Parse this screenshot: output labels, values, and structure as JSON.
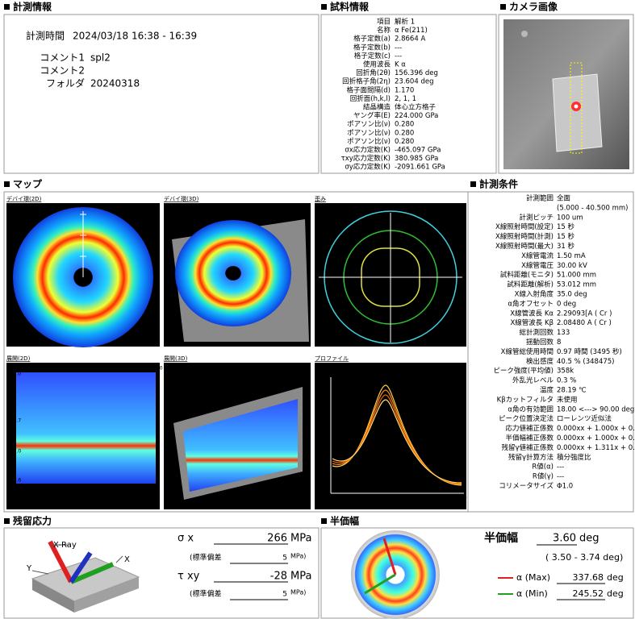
{
  "measurement_info": {
    "title": "計測情報",
    "rows": [
      {
        "label": "計測時間",
        "value": "2024/03/18  16:38 - 16:39"
      },
      {
        "label": "コメント1",
        "value": "spl2"
      },
      {
        "label": "コメント2"
      },
      {
        "label": "フォルダ",
        "value": "20240318"
      }
    ]
  },
  "sample_info": {
    "title": "試料情報",
    "rows": [
      {
        "label": "項目",
        "value": "解析 1"
      },
      {
        "label": "名称",
        "value": "α Fe(211)"
      },
      {
        "label": "格子定数(a)",
        "value": "2.8664 A"
      },
      {
        "label": "格子定数(b)",
        "value": "---"
      },
      {
        "label": "格子定数(c)",
        "value": "---"
      },
      {
        "label": "使用波長",
        "value": "K α"
      },
      {
        "label": "回折角(2θ)",
        "value": "156.396 deg"
      },
      {
        "label": "回折格子角(2η)",
        "value": "23.604 deg"
      },
      {
        "label": "格子面間隔(d)",
        "value": "1.170"
      },
      {
        "label": "回折面(h,k,l)",
        "value": "2, 1, 1"
      },
      {
        "label": "結晶構造",
        "value": "体心立方格子"
      },
      {
        "label": "ヤング率(E)",
        "value": "224.000 GPa"
      },
      {
        "label": "ポアソン比(ν)",
        "value": "0.280"
      },
      {
        "label": "ポアソン比(ν)",
        "value": "0.280"
      },
      {
        "label": "ポアソン比(ν)",
        "value": "0.280"
      },
      {
        "label": "σx応力定数(K)",
        "value": "-465.097 GPa"
      },
      {
        "label": "τxy応力定数(K)",
        "value": "380.985 GPa"
      },
      {
        "label": "σy応力定数(K)",
        "value": "-2091.661 GPa"
      }
    ]
  },
  "camera": {
    "title": "カメラ画像"
  },
  "map": {
    "title": "マップ",
    "panels": [
      {
        "title": "デバイ環(2D)",
        "rotation": "回転 : 0 [deg]"
      },
      {
        "title": "デバイ環(3D)",
        "rotation": "回転 : 0 [deg]"
      },
      {
        "title": "歪み",
        "rotation": "回転 : 0 [deg]",
        "range": "21.229 --> 24.986 [mm]"
      },
      {
        "title": "展開(2D)",
        "rotation": "回転 : 0 [deg]",
        "xticks": [
          "0.0",
          "90.0",
          "180.0",
          "270.0",
          "360.0"
        ],
        "yticks": [
          "188.0",
          "165.7",
          "158.0",
          "142.6"
        ]
      },
      {
        "title": "展開(3D)",
        "rotation": "回転 : 0 [deg]"
      },
      {
        "title": "プロファイル",
        "range": "α : 0.00 --> 360.00 [deg]",
        "yticks": [
          "578",
          "99"
        ],
        "xticks": [
          "174.0",
          "158.8",
          "142.0"
        ]
      }
    ]
  },
  "conditions": {
    "title": "計測条件",
    "rows": [
      {
        "label": "計測範囲",
        "value": "全面"
      },
      {
        "value": "(5.000 - 40.500 mm)"
      },
      {
        "label": "計測ピッチ",
        "value": "100 um"
      },
      {
        "label": "X線照射時間(設定)",
        "value": "15 秒"
      },
      {
        "label": "X線照射時間(計測)",
        "value": "15 秒"
      },
      {
        "label": "X線照射時間(最大)",
        "value": "31 秒"
      },
      {
        "label": "X線管電流",
        "value": "1.50 mA"
      },
      {
        "label": "X線管電圧",
        "value": "30.00 kV"
      },
      {
        "label": "試料距離(モニタ)",
        "value": "51.000 mm"
      },
      {
        "label": "試料距離(解析)",
        "value": "53.012 mm"
      },
      {
        "label": "X線入射角度",
        "value": "35.0 deg"
      },
      {
        "label": "α角オフセット",
        "value": "0 deg"
      },
      {
        "label": "X線管波長 Kα",
        "value": "2.29093[A ( Cr )"
      },
      {
        "label": "X線管波長 Kβ",
        "value": "2.08480 A ( Cr )"
      },
      {
        "label": "総計測回数",
        "value": "133"
      },
      {
        "label": "揺動回数",
        "value": "8"
      },
      {
        "label": "X線管総使用時間",
        "value": "0.97 時間 (3495 秒)"
      },
      {
        "label": "検出感度",
        "value": "40.5 % (348475)"
      },
      {
        "label": "ピーク強度(平均値)",
        "value": "358k"
      },
      {
        "label": "外乱光レベル",
        "value": "0.3 %"
      },
      {
        "label": "温度",
        "value": "28.19 ℃"
      },
      {
        "label": "Kβカットフィルタ",
        "value": "未使用"
      },
      {
        "label": "α角の有効範囲",
        "value": "18.00 <---> 90.00 deg"
      },
      {
        "label": "ピーク位置決定法",
        "value": "ローレンツ近似法"
      },
      {
        "label": "応力値補正係数",
        "value": "0.000xx + 1.000x + 0.000"
      },
      {
        "label": "半価幅補正係数",
        "value": "0.000xx + 1.000x + 0.000"
      },
      {
        "label": "残留γ値補正係数",
        "value": "0.000xx + 1.311x + 0.282"
      },
      {
        "label": "残留γ計算方法",
        "value": "積分強度比"
      },
      {
        "label": "R値(α)",
        "value": "---"
      },
      {
        "label": "R値(γ)",
        "value": "---"
      },
      {
        "label": "コリメータサイズ",
        "value": "Φ1.0"
      }
    ]
  },
  "residual_stress": {
    "title": "残留応力",
    "axes": [
      "X-Ray",
      "Y",
      "X"
    ],
    "sigma_x": {
      "label": "σ x",
      "value": "266",
      "unit": "MPa"
    },
    "sigma_x_sd": {
      "label": "(標準偏差",
      "value": "5",
      "unit": "MPa)"
    },
    "tau_xy": {
      "label": "τ xy",
      "value": "-28",
      "unit": "MPa"
    },
    "tau_xy_sd": {
      "label": "(標準偏差",
      "value": "5",
      "unit": "MPa)"
    }
  },
  "half_width": {
    "title": "半価幅",
    "fwhm": {
      "label": "半価幅",
      "value": "3.60",
      "unit": "deg"
    },
    "range": "( 3.50 - 3.74 deg)",
    "max": {
      "label": "α (Max)",
      "value": "337.68",
      "unit": "deg"
    },
    "min": {
      "label": "α (Min)",
      "value": "245.52",
      "unit": "deg"
    }
  }
}
